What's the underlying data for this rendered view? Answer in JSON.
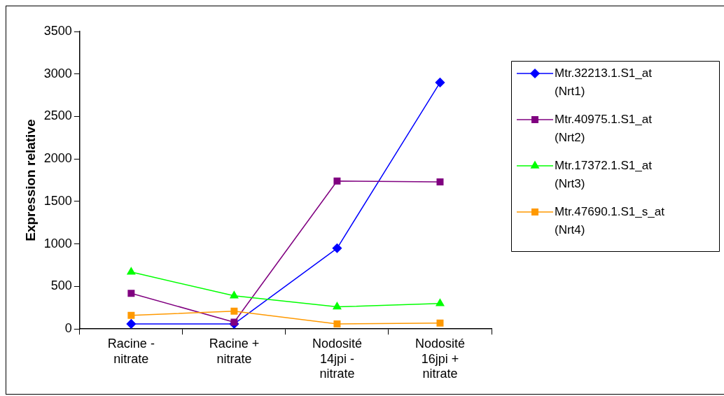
{
  "chart_data": {
    "type": "line",
    "ylabel": "Expression relative",
    "categories": [
      "Racine - nitrate",
      "Racine + nitrate",
      "Nodosité 14jpi - nitrate",
      "Nodosité 16jpi + nitrate"
    ],
    "series": [
      {
        "name": "Mtr.32213.1.S1_at (Nrt1)",
        "color": "#0000ff",
        "marker": "diamond",
        "values": [
          60,
          60,
          950,
          2900
        ]
      },
      {
        "name": "Mtr.40975.1.S1_at (Nrt2)",
        "color": "#800080",
        "marker": "square",
        "values": [
          420,
          80,
          1740,
          1730
        ]
      },
      {
        "name": "Mtr.17372.1.S1_at (Nrt3)",
        "color": "#00ff00",
        "marker": "triangle",
        "values": [
          670,
          390,
          260,
          300
        ]
      },
      {
        "name": "Mtr.47690.1.S1_s_at (Nrt4)",
        "color": "#ff9900",
        "marker": "square",
        "values": [
          160,
          210,
          60,
          70
        ]
      }
    ],
    "ylim": [
      0,
      3500
    ],
    "yticks": [
      0,
      500,
      1000,
      1500,
      2000,
      2500,
      3000,
      3500
    ],
    "grid": false,
    "legend": "right",
    "line_style": "solid"
  }
}
